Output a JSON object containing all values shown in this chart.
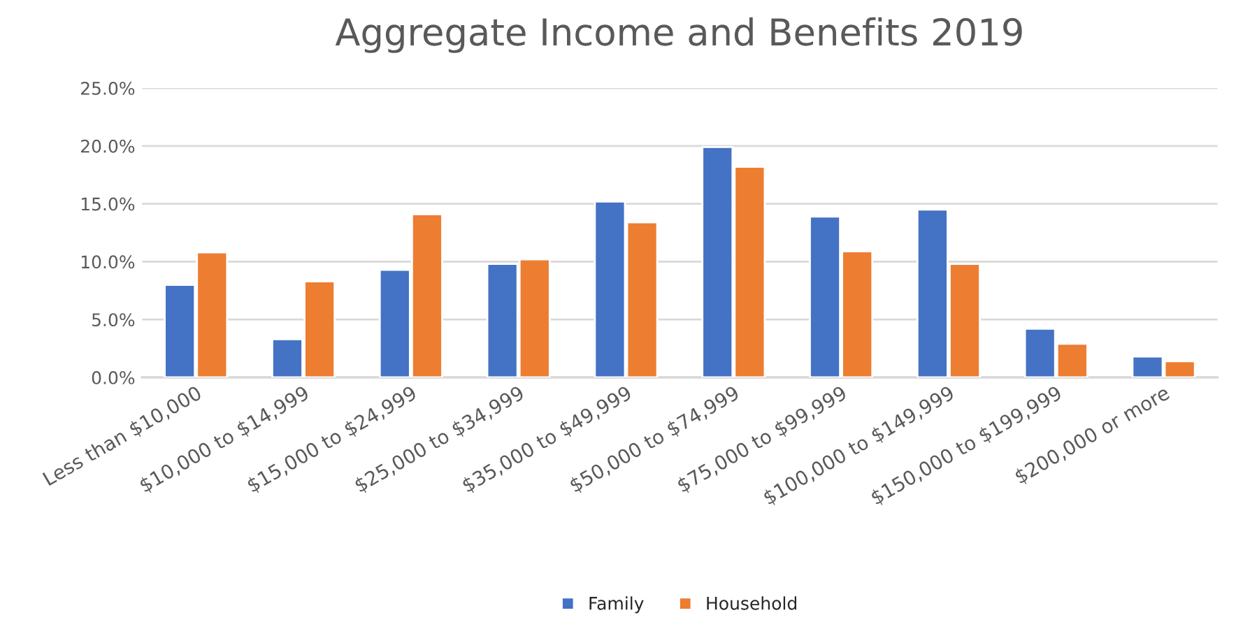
{
  "chart_data": {
    "type": "bar",
    "title": "Aggregate Income and Benefits 2019",
    "categories": [
      "Less than $10,000",
      "$10,000 to $14,999",
      "$15,000 to $24,999",
      "$25,000 to $34,999",
      "$35,000 to $49,999",
      "$50,000 to $74,999",
      "$75,000 to $99,999",
      "$100,000 to $149,999",
      "$150,000 to $199,999",
      "$200,000 or more"
    ],
    "series": [
      {
        "name": "Family",
        "color": "#4472c4",
        "values": [
          8.0,
          3.3,
          9.3,
          9.8,
          15.2,
          19.9,
          13.9,
          14.5,
          4.2,
          1.8
        ]
      },
      {
        "name": "Household",
        "color": "#ed7d31",
        "values": [
          10.8,
          8.3,
          14.1,
          10.2,
          13.4,
          18.2,
          10.9,
          9.8,
          2.9,
          1.4
        ]
      }
    ],
    "ylim": [
      0,
      25
    ],
    "yticks": [
      {
        "value": 0,
        "label": "0.0%"
      },
      {
        "value": 5,
        "label": "5.0%"
      },
      {
        "value": 10,
        "label": "10.0%"
      },
      {
        "value": 15,
        "label": "15.0%"
      },
      {
        "value": 20,
        "label": "20.0%"
      },
      {
        "value": 25,
        "label": "25.0%"
      }
    ],
    "grid": "y",
    "legend": "bottom"
  }
}
